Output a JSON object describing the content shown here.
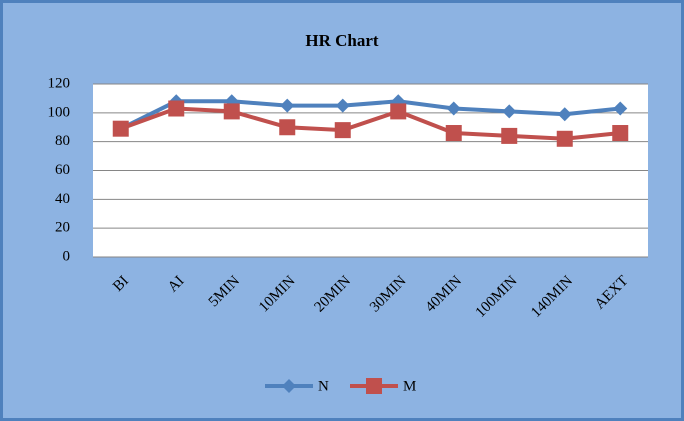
{
  "chart_data": {
    "type": "line",
    "title": "HR Chart",
    "categories": [
      "BI",
      "AI",
      "5MIN",
      "10MIN",
      "20MIN",
      "30MIN",
      "40MIN",
      "100MIN",
      "140MIN",
      "AEXT"
    ],
    "series": [
      {
        "name": "N",
        "color": "#4f81bd",
        "marker": "diamond",
        "values": [
          89,
          108,
          108,
          105,
          105,
          108,
          103,
          101,
          99,
          103
        ]
      },
      {
        "name": "M",
        "color": "#c0504d",
        "marker": "square",
        "values": [
          89,
          103,
          101,
          90,
          88,
          101,
          86,
          84,
          82,
          86
        ]
      }
    ],
    "ylim": [
      0,
      120
    ],
    "yticks": [
      0,
      20,
      40,
      60,
      80,
      100,
      120
    ],
    "grid": true,
    "legend": "bottom"
  }
}
